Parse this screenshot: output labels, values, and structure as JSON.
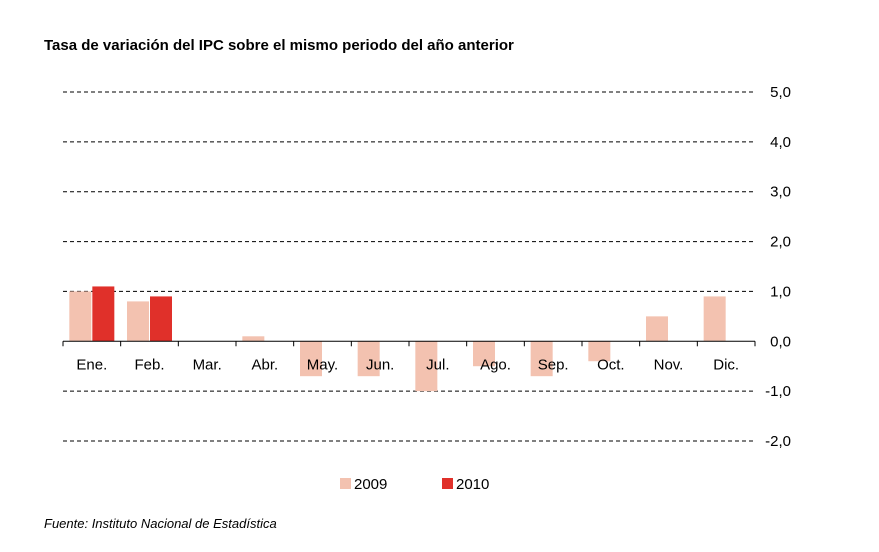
{
  "title": "Tasa de variación del IPC sobre el mismo periodo del año anterior",
  "source": "Fuente: Instituto Nacional de Estadística",
  "colors": {
    "s2009": "#f3c2b0",
    "s2010": "#e0302a",
    "grid": "#000000"
  },
  "chart_data": {
    "type": "bar",
    "categories": [
      "Ene.",
      "Feb.",
      "Mar.",
      "Abr.",
      "May.",
      "Jun.",
      "Jul.",
      "Ago.",
      "Sep.",
      "Oct.",
      "Nov.",
      "Dic."
    ],
    "series": [
      {
        "name": "2009",
        "values": [
          1.0,
          0.8,
          0.0,
          0.1,
          -0.7,
          -0.7,
          -1.0,
          -0.5,
          -0.7,
          -0.4,
          0.5,
          0.9
        ]
      },
      {
        "name": "2010",
        "values": [
          1.1,
          0.9,
          null,
          null,
          null,
          null,
          null,
          null,
          null,
          null,
          null,
          null
        ]
      }
    ],
    "ylim": [
      -2.0,
      5.0
    ],
    "yticks": [
      "5,0",
      "4,0",
      "3,0",
      "2,0",
      "1,0",
      "0,0",
      "-1,0",
      "-2,0"
    ],
    "ytick_values": [
      5,
      4,
      3,
      2,
      1,
      0,
      -1,
      -2
    ],
    "grid": "dashed-horizontal",
    "y_axis_side": "right",
    "legend_position": "bottom-center"
  }
}
